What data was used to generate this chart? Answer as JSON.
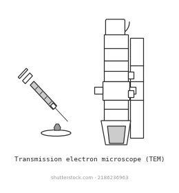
{
  "title": "Transmission electron microscope (TEM)",
  "watermark": "shutterstock.com · 2186236963",
  "bg_color": "#ffffff",
  "outline_color": "#2a2a2a",
  "gray_color": "#999999",
  "light_gray": "#cccccc",
  "title_fontsize": 6.8,
  "watermark_fontsize": 5.0
}
